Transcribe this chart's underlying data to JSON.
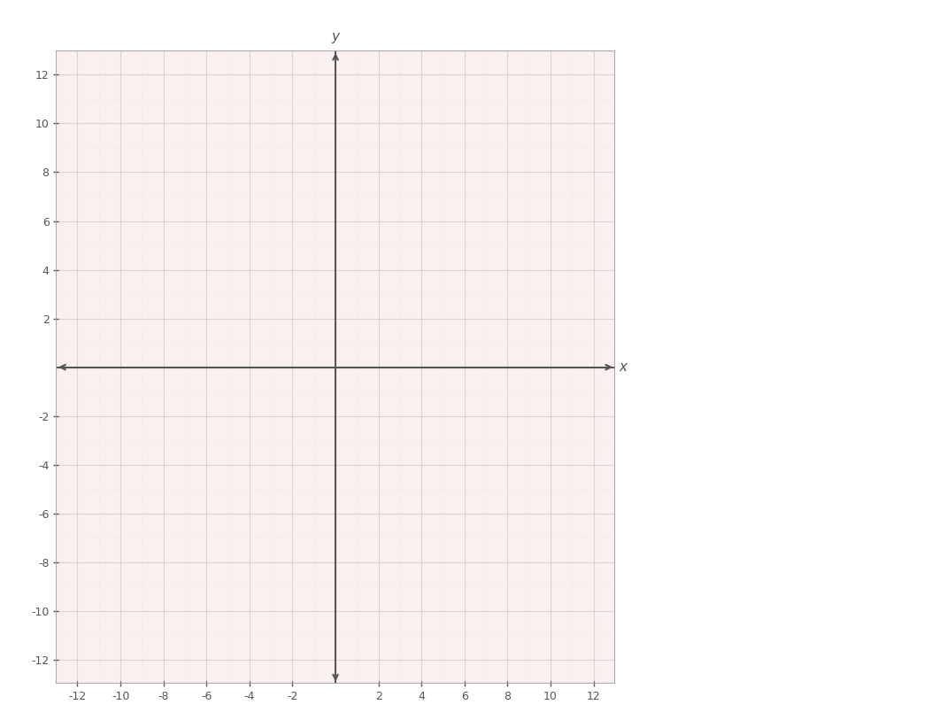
{
  "xlim": [
    -13,
    13
  ],
  "ylim": [
    -13,
    13
  ],
  "xticks": [
    -12,
    -10,
    -8,
    -6,
    -4,
    -2,
    2,
    4,
    6,
    8,
    10,
    12
  ],
  "yticks": [
    -12,
    -10,
    -8,
    -6,
    -4,
    -2,
    2,
    4,
    6,
    8,
    10,
    12
  ],
  "xlabel": "x",
  "ylabel": "y",
  "grid_major_color": "#c8c8c8",
  "grid_minor_color": "#e0e0e0",
  "axis_color": "#555555",
  "background_color": "#faf0f0",
  "outer_background": "#ffffff",
  "tick_label_color": "#555555",
  "tick_fontsize": 9,
  "figure_width": 10.53,
  "figure_height": 8.13
}
